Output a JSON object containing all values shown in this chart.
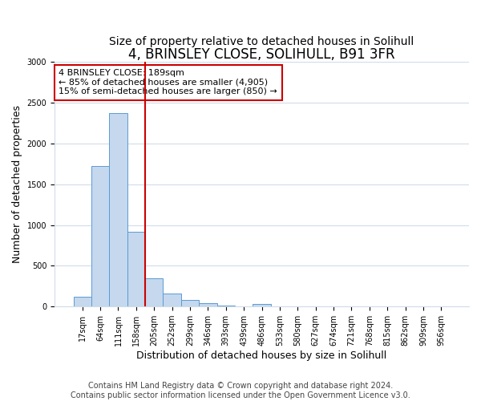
{
  "title": "4, BRINSLEY CLOSE, SOLIHULL, B91 3FR",
  "subtitle": "Size of property relative to detached houses in Solihull",
  "xlabel": "Distribution of detached houses by size in Solihull",
  "ylabel": "Number of detached properties",
  "bar_labels": [
    "17sqm",
    "64sqm",
    "111sqm",
    "158sqm",
    "205sqm",
    "252sqm",
    "299sqm",
    "346sqm",
    "393sqm",
    "439sqm",
    "486sqm",
    "533sqm",
    "580sqm",
    "627sqm",
    "674sqm",
    "721sqm",
    "768sqm",
    "815sqm",
    "862sqm",
    "909sqm",
    "956sqm"
  ],
  "bar_values": [
    120,
    1720,
    2370,
    920,
    350,
    155,
    80,
    40,
    15,
    0,
    30,
    0,
    0,
    0,
    0,
    0,
    0,
    0,
    0,
    0,
    0
  ],
  "bar_color": "#c5d8ed",
  "bar_edgecolor": "#5b9bd5",
  "vline_x_index": 4,
  "vline_color": "#cc0000",
  "annotation_title": "4 BRINSLEY CLOSE: 189sqm",
  "annotation_line1": "← 85% of detached houses are smaller (4,905)",
  "annotation_line2": "15% of semi-detached houses are larger (850) →",
  "annotation_box_edgecolor": "#cc0000",
  "ylim": [
    0,
    3000
  ],
  "yticks": [
    0,
    500,
    1000,
    1500,
    2000,
    2500,
    3000
  ],
  "grid_color": "#d0dce8",
  "bg_color": "#ffffff",
  "footer1": "Contains HM Land Registry data © Crown copyright and database right 2024.",
  "footer2": "Contains public sector information licensed under the Open Government Licence v3.0.",
  "title_fontsize": 12,
  "subtitle_fontsize": 10,
  "xlabel_fontsize": 9,
  "ylabel_fontsize": 9,
  "tick_fontsize": 7,
  "footer_fontsize": 7
}
